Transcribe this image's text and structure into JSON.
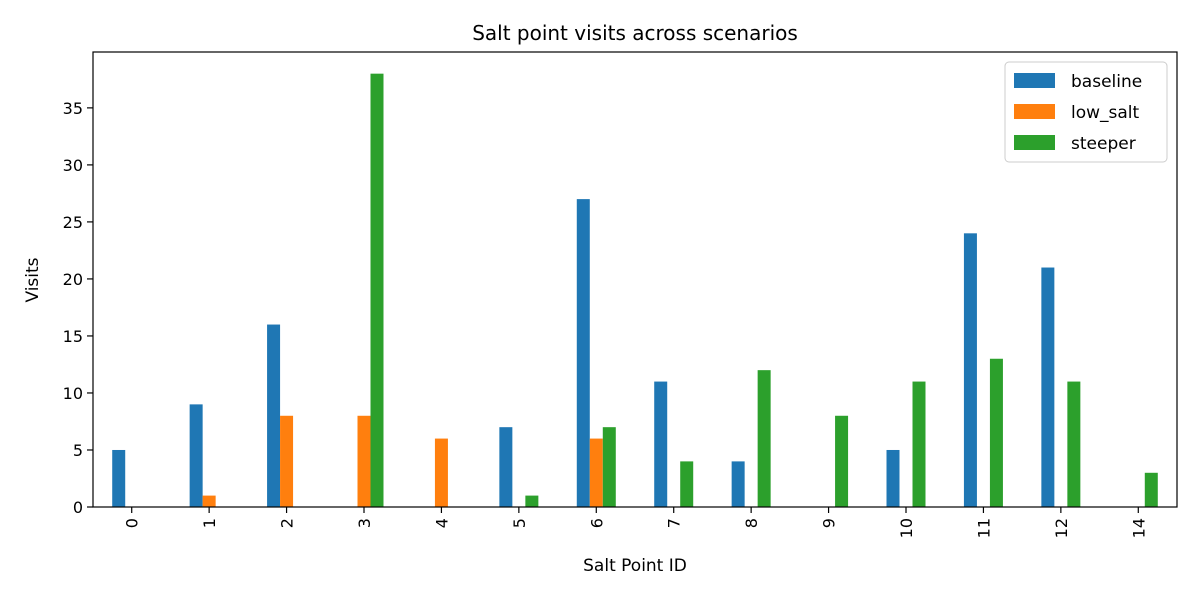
{
  "chart_data": {
    "type": "bar",
    "title": "Salt point visits across scenarios",
    "xlabel": "Salt Point ID",
    "ylabel": "Visits",
    "categories": [
      "0",
      "1",
      "2",
      "3",
      "4",
      "5",
      "6",
      "7",
      "8",
      "9",
      "10",
      "11",
      "12",
      "14"
    ],
    "series": [
      {
        "name": "baseline",
        "color": "#1f77b4",
        "values": [
          5,
          9,
          16,
          0,
          0,
          7,
          27,
          11,
          4,
          0,
          5,
          24,
          21,
          0
        ]
      },
      {
        "name": "low_salt",
        "color": "#ff7f0e",
        "values": [
          0,
          1,
          8,
          8,
          6,
          0,
          6,
          0,
          0,
          0,
          0,
          0,
          0,
          0
        ]
      },
      {
        "name": "steeper",
        "color": "#2ca02c",
        "values": [
          0,
          0,
          0,
          38,
          0,
          1,
          7,
          4,
          12,
          8,
          11,
          13,
          11,
          3
        ]
      }
    ],
    "ylim": [
      0,
      39.9
    ],
    "yticks": [
      0,
      5,
      10,
      15,
      20,
      25,
      30,
      35
    ],
    "grid": false,
    "legend_position": "top-right"
  }
}
